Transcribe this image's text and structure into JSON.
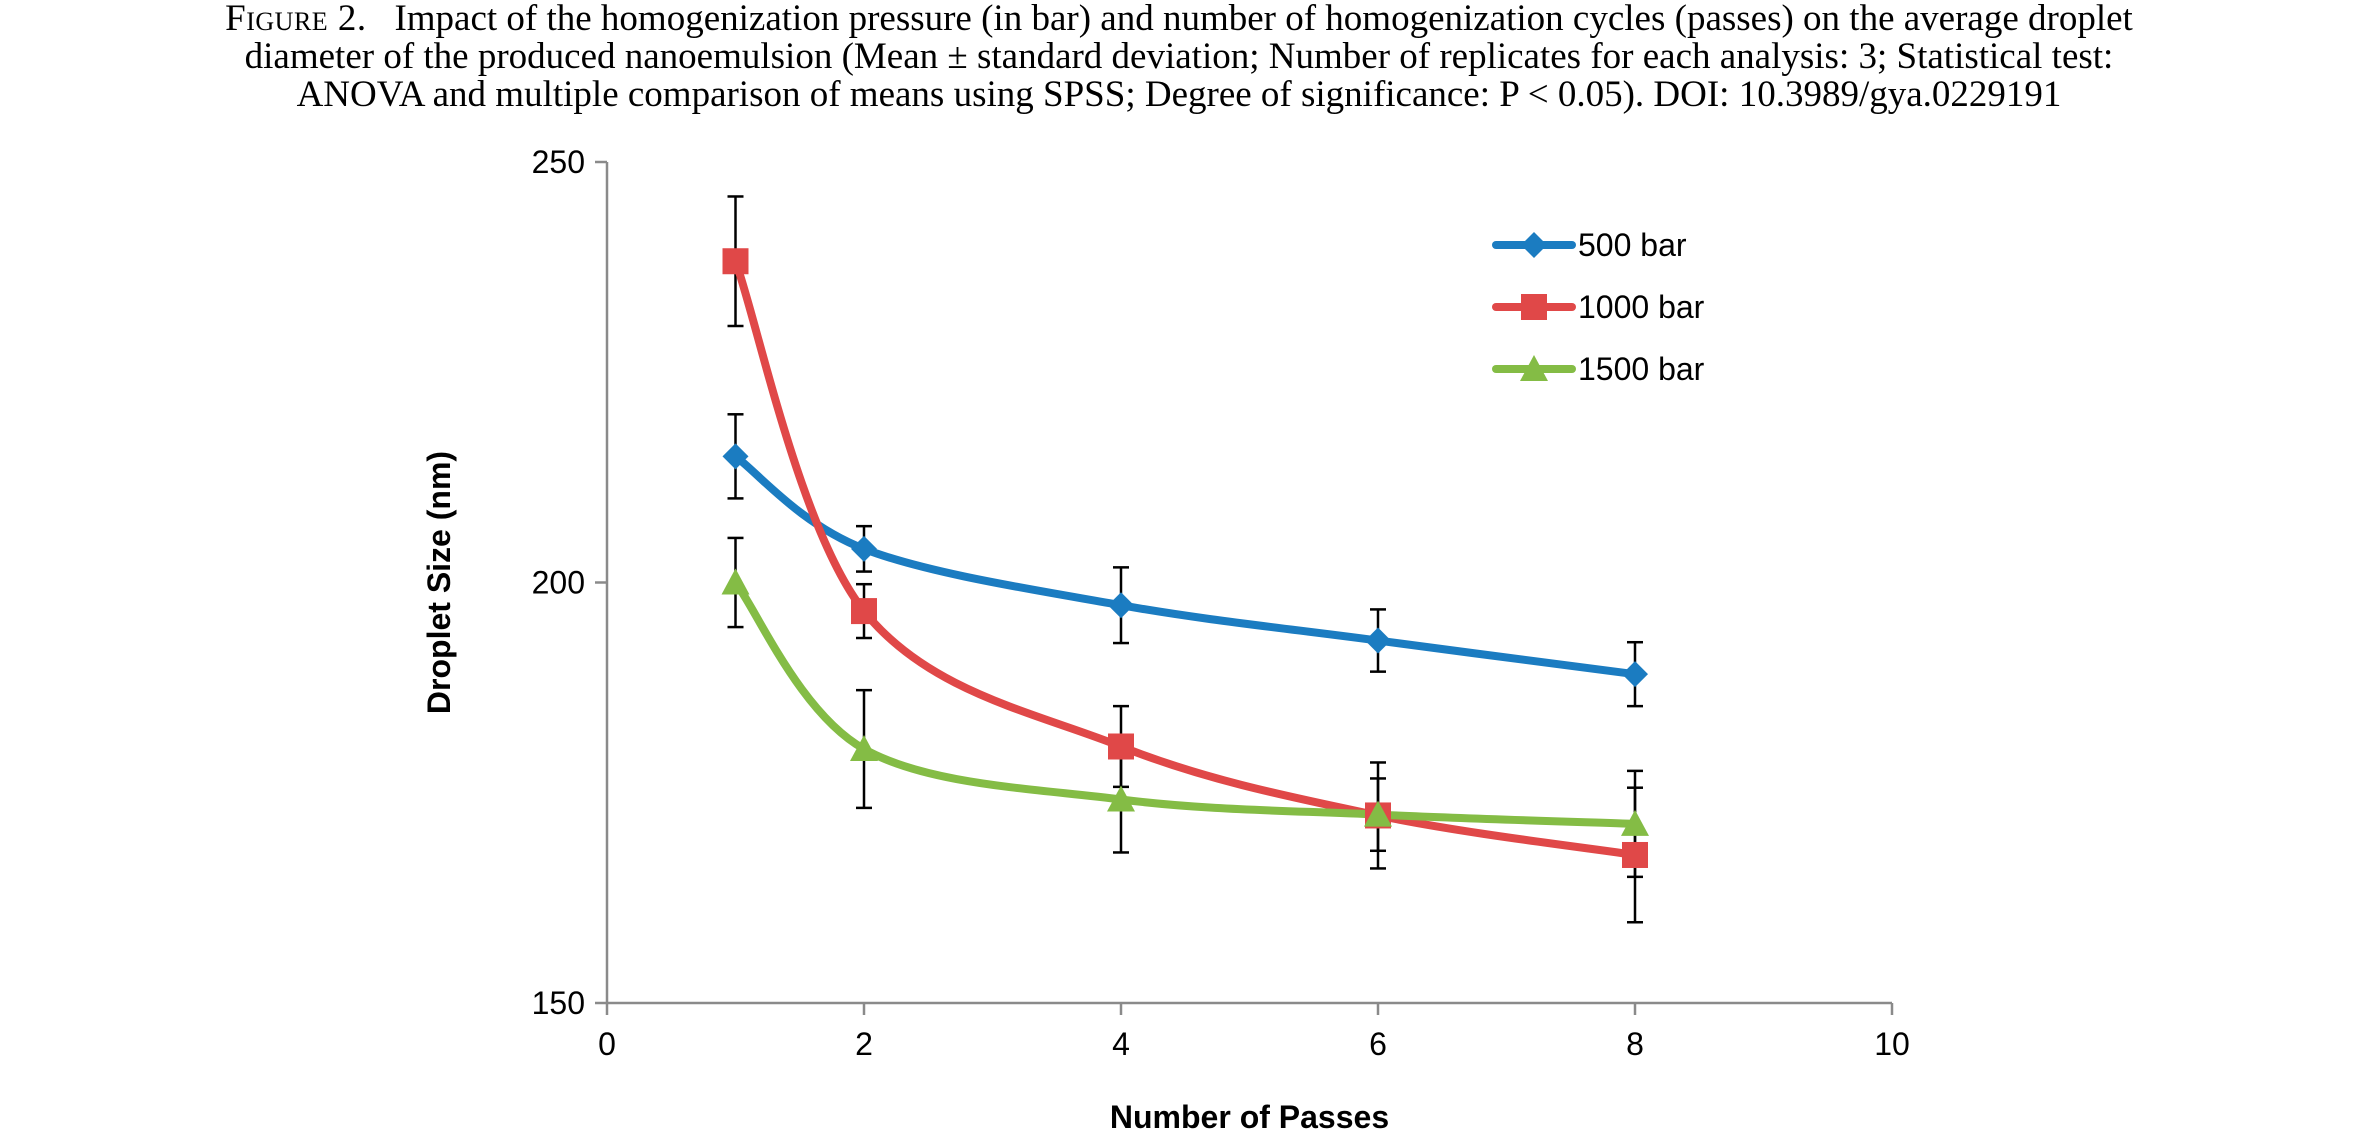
{
  "caption": {
    "label": "Figure 2.",
    "line1": "Impact of the homogenization pressure (in bar) and number of homogenization cycles (passes) on the average droplet",
    "line2": "diameter of the produced nanoemulsion (Mean ± standard deviation; Number of replicates for each analysis: 3; Statistical test:",
    "line3": "ANOVA and multiple comparison of means using SPSS; Degree of significance: P < 0.05). DOI: 10.3989/gya.0229191"
  },
  "chart_data": {
    "type": "line",
    "smooth": true,
    "xlabel": "Number of Passes",
    "ylabel": "Droplet Size (nm)",
    "xlim": [
      0,
      10
    ],
    "ylim": [
      150,
      250
    ],
    "xticks": [
      0,
      2,
      4,
      6,
      8,
      10
    ],
    "yticks": [
      150,
      200,
      250
    ],
    "grid": false,
    "legend_position": "top-right",
    "x": [
      1,
      2,
      4,
      6,
      8
    ],
    "series": [
      {
        "name": "500 bar",
        "color": "#1b7cc1",
        "marker": "diamond",
        "values": [
          215,
          204,
          197.3,
          193.1,
          189.1
        ],
        "errors": [
          5,
          2.7,
          4.5,
          3.7,
          3.8
        ]
      },
      {
        "name": "1000 bar",
        "color": "#e04848",
        "marker": "square",
        "values": [
          238.2,
          196.6,
          180.5,
          172.3,
          167.6
        ],
        "errors": [
          7.7,
          3.2,
          4.8,
          6.3,
          8
        ]
      },
      {
        "name": "1500 bar",
        "color": "#84bc45",
        "marker": "triangle",
        "values": [
          200,
          180.2,
          174.2,
          172.4,
          171.3
        ],
        "errors": [
          5.3,
          7,
          6.3,
          4.3,
          6.3
        ]
      }
    ]
  }
}
